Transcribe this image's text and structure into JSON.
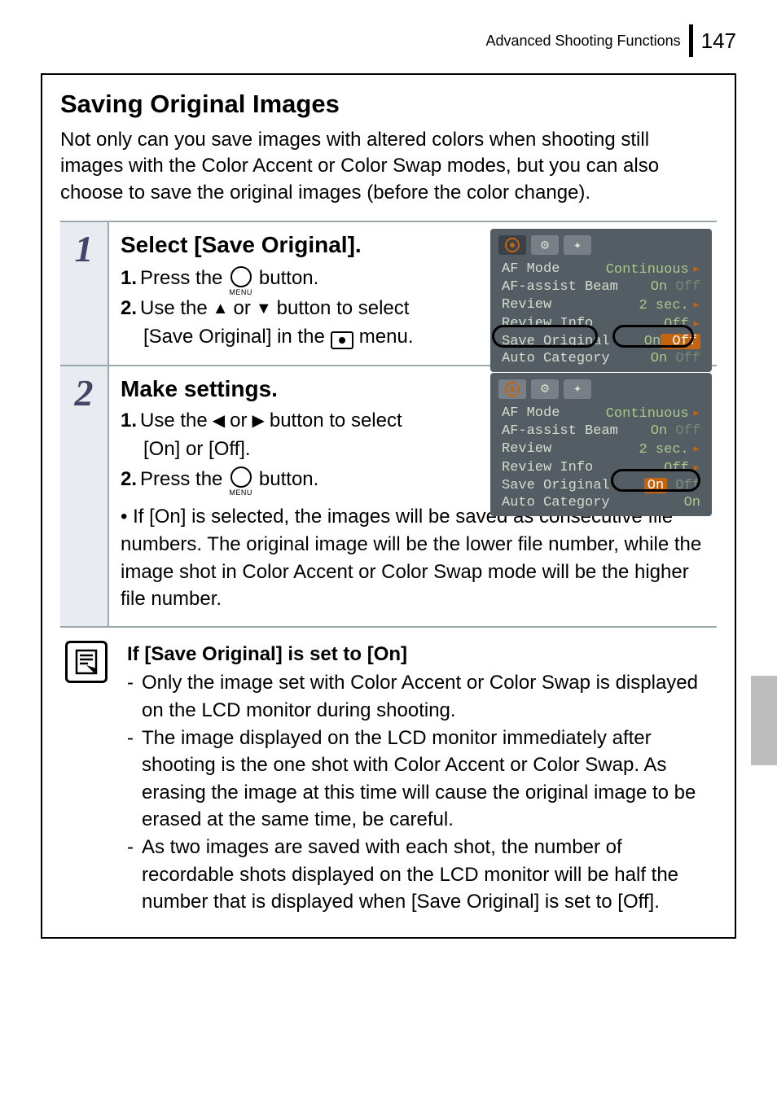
{
  "header": {
    "section": "Advanced Shooting Functions",
    "page_number": "147"
  },
  "box": {
    "title": "Saving Original Images",
    "intro": "Not only can you save images with altered colors when shooting still images with the Color Accent or Color Swap modes, but you can also choose to save the original images (before the color change)."
  },
  "step1": {
    "num": "1",
    "heading": "Select [Save Original].",
    "line1_num": "1.",
    "line1_a": "Press the",
    "line1_b": "button.",
    "menu_label": "MENU",
    "line2_num": "2.",
    "line2_a": "Use the",
    "line2_b": "or",
    "line2_c": "button to select",
    "line2_d": "[Save Original] in the",
    "line2_e": "menu."
  },
  "cam1": {
    "rows": [
      {
        "label": "AF Mode",
        "value": "Continuous",
        "tri": true
      },
      {
        "label": "AF-assist Beam",
        "value_on": "On",
        "value_off": "Off"
      },
      {
        "label": "Review",
        "value": "2 sec.",
        "tri": true
      },
      {
        "label": "Review Info",
        "value": "Off",
        "tri": true
      },
      {
        "label": "Save Original",
        "value_on": "On",
        "value_off": "Off",
        "sel": "Off"
      },
      {
        "label": "Auto Category",
        "value_on": "On",
        "value_off": "Off"
      }
    ],
    "highlight_row_index": 4,
    "colors": {
      "bg": "#555d64",
      "text": "#d4ddce",
      "accent": "#c4640f",
      "val": "#a8c989"
    }
  },
  "step2": {
    "num": "2",
    "heading": "Make settings.",
    "line1_num": "1.",
    "line1_a": "Use the",
    "line1_b": "or",
    "line1_c": "button to select",
    "line1_d": "[On] or [Off].",
    "line2_num": "2.",
    "line2_a": "Press the",
    "line2_b": "button.",
    "menu_label": "MENU",
    "bullet": "• If [On] is selected, the images will be saved as consecutive file numbers. The original image will be the lower file number, while the image shot in Color Accent or Color Swap mode will be the higher file number."
  },
  "cam2": {
    "rows": [
      {
        "label": "AF Mode",
        "value": "Continuous",
        "tri": true
      },
      {
        "label": "AF-assist Beam",
        "value_on": "On",
        "value_off": "Off"
      },
      {
        "label": "Review",
        "value": "2 sec.",
        "tri": true
      },
      {
        "label": "Review Info",
        "value": "Off",
        "tri": true
      },
      {
        "label": "Save Original",
        "value_on": "On",
        "value_off": "Off",
        "sel": "On"
      },
      {
        "label": "Auto Category",
        "value": "On"
      }
    ],
    "highlight_row_index": 4
  },
  "note": {
    "heading": "If [Save Original] is set to [On]",
    "items": [
      "Only the image set with Color Accent or Color Swap is displayed on the LCD monitor during shooting.",
      "The image displayed on the LCD monitor immediately after shooting is the one shot with Color Accent or Color Swap. As erasing the image at this time will cause the original image to be erased at the same time, be careful.",
      "As two images are saved with each shot, the number of recordable shots displayed on the LCD monitor will be half the number that is displayed when [Save Original] is set to [Off]."
    ]
  },
  "arrows": {
    "up": "▲",
    "down": "▼",
    "left": "◀",
    "right": "▶"
  }
}
